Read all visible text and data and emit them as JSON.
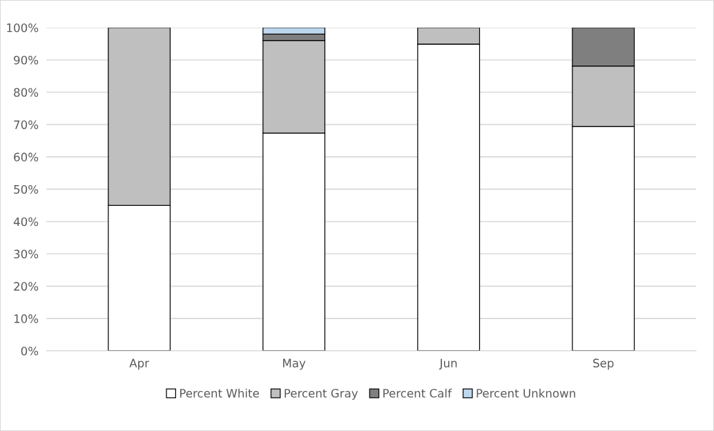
{
  "chart_data": {
    "type": "bar",
    "stacked": true,
    "categories": [
      "Apr",
      "May",
      "Jun",
      "Sep"
    ],
    "series": [
      {
        "name": "Percent White",
        "color": "#ffffff",
        "values": [
          45,
          67.4,
          94.9,
          69.4
        ]
      },
      {
        "name": "Percent Gray",
        "color": "#bfbfbf",
        "values": [
          55,
          28.6,
          5.1,
          18.7
        ]
      },
      {
        "name": "Percent Calf",
        "color": "#7f7f7f",
        "values": [
          null,
          2.0,
          null,
          11.9
        ]
      },
      {
        "name": "Percent Unknown",
        "color": "#bdd7ee",
        "values": [
          null,
          2.0,
          null,
          null
        ]
      }
    ],
    "ylim": [
      0,
      100
    ],
    "yticks": [
      {
        "value": 0,
        "label": "0%"
      },
      {
        "value": 10,
        "label": "10%"
      },
      {
        "value": 20,
        "label": "20%"
      },
      {
        "value": 30,
        "label": "30%"
      },
      {
        "value": 40,
        "label": "40%"
      },
      {
        "value": 50,
        "label": "50%"
      },
      {
        "value": 60,
        "label": "60%"
      },
      {
        "value": 70,
        "label": "70%"
      },
      {
        "value": 80,
        "label": "80%"
      },
      {
        "value": 90,
        "label": "90%"
      },
      {
        "value": 100,
        "label": "100%"
      }
    ],
    "grid": "y",
    "legend": "bottom"
  }
}
